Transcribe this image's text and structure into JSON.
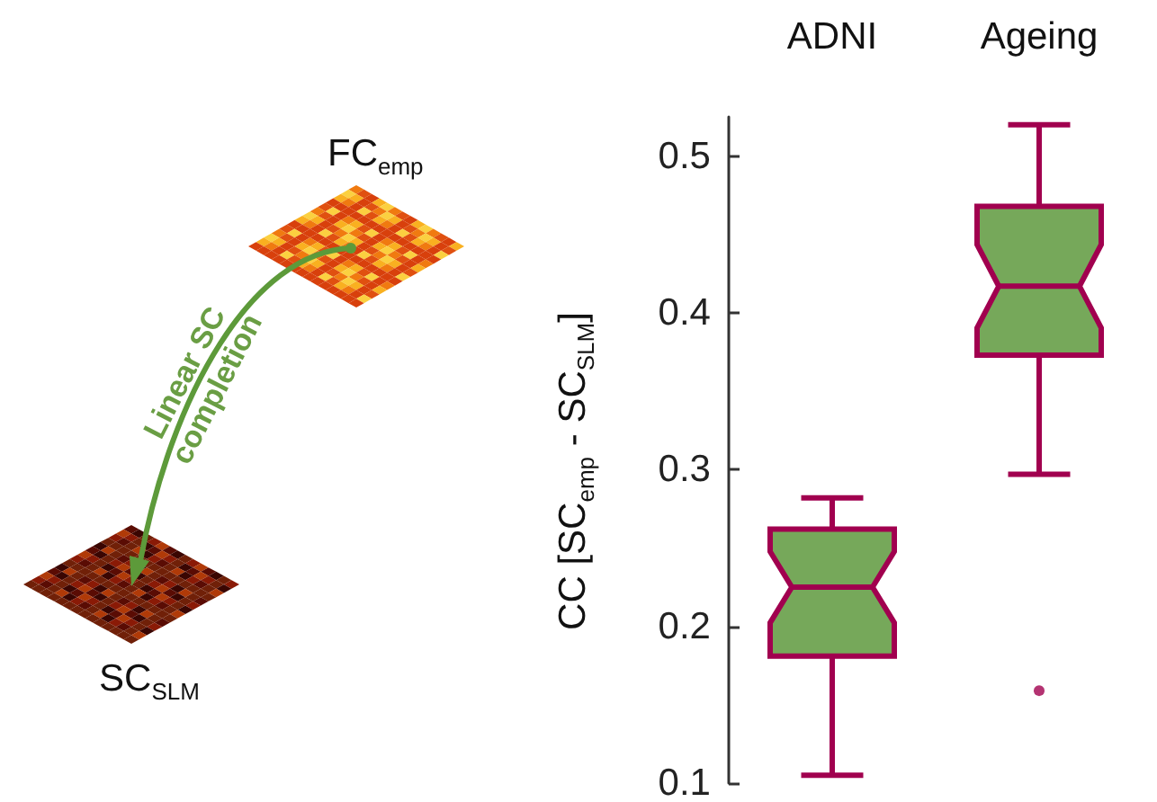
{
  "chart_data": {
    "type": "box",
    "categories": [
      "ADNI",
      "Ageing"
    ],
    "color": "#76a85a",
    "boxes": [
      {
        "low": 0.105,
        "q1": 0.181,
        "median": 0.225,
        "q3": 0.262,
        "high": 0.282
      },
      {
        "low": 0.297,
        "q1": 0.373,
        "median": 0.417,
        "q3": 0.468,
        "high": 0.52,
        "outliers": [
          0.159
        ]
      }
    ],
    "ylabel": "CC [SC$_{emp}$ - SC$_{SLM}$]",
    "ylim": [
      0.1,
      0.525
    ],
    "yticks": [
      0.1,
      0.2,
      0.3,
      0.4,
      0.5
    ],
    "grid": false,
    "annotations": [
      "FC$_{emp}$",
      "SC$_{SLM}$",
      "Linear SC completion"
    ]
  }
}
